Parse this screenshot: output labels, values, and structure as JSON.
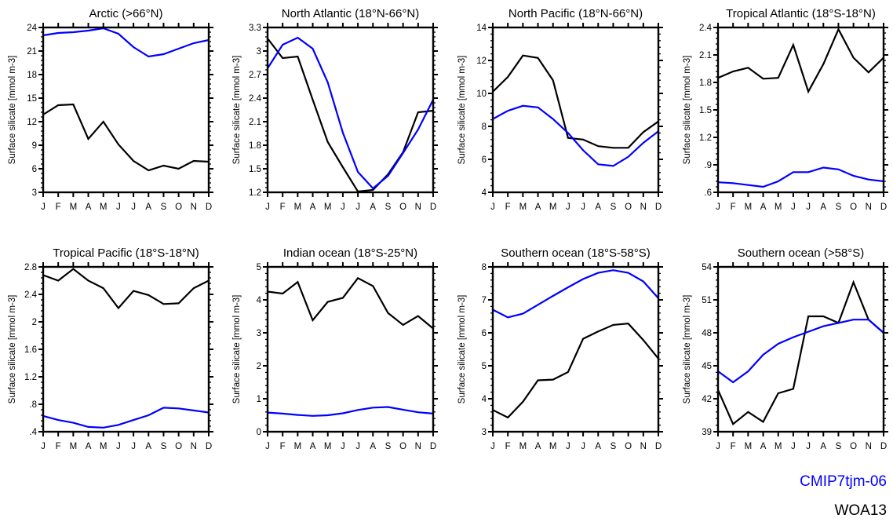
{
  "figure": {
    "ylabel": "Surface silicate [mmol m-3]",
    "months": [
      "J",
      "F",
      "M",
      "A",
      "M",
      "J",
      "J",
      "A",
      "S",
      "O",
      "N",
      "D"
    ]
  },
  "legend": {
    "items": [
      {
        "name": "CMIP7tjm-06",
        "color": "#0000ff"
      },
      {
        "name": "WOA13",
        "color": "#000000"
      }
    ]
  },
  "chart_data": [
    {
      "type": "line",
      "title": "Arctic (>66°N)",
      "xlabel": "",
      "ylabel": "Surface silicate [mmol m-3]",
      "ylim": [
        3,
        24
      ],
      "yticks": [
        3,
        6,
        9,
        12,
        15,
        18,
        21,
        24
      ],
      "ytick_labels": [
        "3",
        "6",
        "9",
        "12",
        "15",
        "18",
        "21",
        "24"
      ],
      "categories": [
        "J",
        "F",
        "M",
        "A",
        "M",
        "J",
        "J",
        "A",
        "S",
        "O",
        "N",
        "D"
      ],
      "series": [
        {
          "name": "CMIP7tjm-06",
          "color": "#0000ff",
          "values": [
            23.0,
            23.3,
            23.4,
            23.6,
            23.9,
            23.2,
            21.5,
            20.3,
            20.6,
            21.3,
            22.0,
            22.4
          ]
        },
        {
          "name": "WOA13",
          "color": "#000000",
          "values": [
            12.9,
            14.1,
            14.2,
            9.8,
            12.0,
            9.1,
            7.0,
            5.8,
            6.4,
            6.0,
            7.0,
            6.9
          ]
        }
      ]
    },
    {
      "type": "line",
      "title": "North Atlantic (18°N-66°N)",
      "xlabel": "",
      "ylabel": "Surface silicate [mmol m-3]",
      "ylim": [
        1.2,
        3.3
      ],
      "yticks": [
        1.2,
        1.5,
        1.8,
        2.1,
        2.4,
        2.7,
        3.0,
        3.3
      ],
      "ytick_labels": [
        "1.2",
        "1.5",
        "1.8",
        "2.1",
        "2.4",
        "2.7",
        "3",
        "3.3"
      ],
      "categories": [
        "J",
        "F",
        "M",
        "A",
        "M",
        "J",
        "J",
        "A",
        "S",
        "O",
        "N",
        "D"
      ],
      "series": [
        {
          "name": "CMIP7tjm-06",
          "color": "#0000ff",
          "values": [
            2.78,
            3.08,
            3.17,
            3.03,
            2.6,
            1.96,
            1.46,
            1.25,
            1.41,
            1.7,
            2.0,
            2.38
          ]
        },
        {
          "name": "WOA13",
          "color": "#000000",
          "values": [
            3.16,
            2.91,
            2.93,
            2.38,
            1.84,
            1.52,
            1.21,
            1.23,
            1.43,
            1.71,
            2.22,
            2.24
          ]
        }
      ]
    },
    {
      "type": "line",
      "title": "North Pacific (18°N-66°N)",
      "xlabel": "",
      "ylabel": "Surface silicate [mmol m-3]",
      "ylim": [
        4,
        14
      ],
      "yticks": [
        4,
        6,
        8,
        10,
        12,
        14
      ],
      "ytick_labels": [
        "4",
        "6",
        "8",
        "10",
        "12",
        "14"
      ],
      "categories": [
        "J",
        "F",
        "M",
        "A",
        "M",
        "J",
        "J",
        "A",
        "S",
        "O",
        "N",
        "D"
      ],
      "series": [
        {
          "name": "CMIP7tjm-06",
          "color": "#0000ff",
          "values": [
            8.45,
            8.95,
            9.25,
            9.15,
            8.45,
            7.6,
            6.55,
            5.7,
            5.6,
            6.15,
            7.0,
            7.7
          ]
        },
        {
          "name": "WOA13",
          "color": "#000000",
          "values": [
            10.1,
            11.0,
            12.3,
            12.15,
            10.8,
            7.3,
            7.2,
            6.8,
            6.7,
            6.7,
            7.65,
            8.3
          ]
        }
      ]
    },
    {
      "type": "line",
      "title": "Tropical Atlantic (18°S-18°N)",
      "xlabel": "",
      "ylabel": "Surface silicate [mmol m-3]",
      "ylim": [
        0.6,
        2.4
      ],
      "yticks": [
        0.6,
        0.9,
        1.2,
        1.5,
        1.8,
        2.1,
        2.4
      ],
      "ytick_labels": [
        ".6",
        ".9",
        "1.2",
        "1.5",
        "1.8",
        "2.1",
        "2.4"
      ],
      "categories": [
        "J",
        "F",
        "M",
        "A",
        "M",
        "J",
        "J",
        "A",
        "S",
        "O",
        "N",
        "D"
      ],
      "series": [
        {
          "name": "CMIP7tjm-06",
          "color": "#0000ff",
          "values": [
            0.71,
            0.7,
            0.68,
            0.66,
            0.72,
            0.82,
            0.82,
            0.87,
            0.85,
            0.78,
            0.74,
            0.72
          ]
        },
        {
          "name": "WOA13",
          "color": "#000000",
          "values": [
            1.85,
            1.92,
            1.96,
            1.84,
            1.85,
            2.21,
            1.7,
            2.0,
            2.38,
            2.07,
            1.91,
            2.07
          ]
        }
      ]
    },
    {
      "type": "line",
      "title": "Tropical Pacific (18°S-18°N)",
      "xlabel": "",
      "ylabel": "Surface silicate [mmol m-3]",
      "ylim": [
        0.4,
        2.8
      ],
      "yticks": [
        0.4,
        0.8,
        1.2,
        1.6,
        2.0,
        2.4,
        2.8
      ],
      "ytick_labels": [
        ".4",
        ".8",
        "1.2",
        "1.6",
        "2",
        "2.4",
        "2.8"
      ],
      "categories": [
        "J",
        "F",
        "M",
        "A",
        "M",
        "J",
        "J",
        "A",
        "S",
        "O",
        "N",
        "D"
      ],
      "series": [
        {
          "name": "CMIP7tjm-06",
          "color": "#0000ff",
          "values": [
            0.63,
            0.57,
            0.53,
            0.47,
            0.46,
            0.5,
            0.57,
            0.64,
            0.75,
            0.74,
            0.71,
            0.68
          ]
        },
        {
          "name": "WOA13",
          "color": "#000000",
          "values": [
            2.68,
            2.6,
            2.77,
            2.6,
            2.49,
            2.2,
            2.45,
            2.39,
            2.26,
            2.27,
            2.49,
            2.6
          ]
        }
      ]
    },
    {
      "type": "line",
      "title": "Indian ocean (18°S-25°N)",
      "xlabel": "",
      "ylabel": "Surface silicate [mmol m-3]",
      "ylim": [
        0,
        5
      ],
      "yticks": [
        0,
        1,
        2,
        3,
        4,
        5
      ],
      "ytick_labels": [
        "0",
        "1",
        "2",
        "3",
        "4",
        "5"
      ],
      "categories": [
        "J",
        "F",
        "M",
        "A",
        "M",
        "J",
        "J",
        "A",
        "S",
        "O",
        "N",
        "D"
      ],
      "series": [
        {
          "name": "CMIP7tjm-06",
          "color": "#0000ff",
          "values": [
            0.58,
            0.55,
            0.51,
            0.48,
            0.5,
            0.56,
            0.66,
            0.73,
            0.75,
            0.67,
            0.59,
            0.55
          ]
        },
        {
          "name": "WOA13",
          "color": "#000000",
          "values": [
            4.25,
            4.19,
            4.54,
            3.38,
            3.94,
            4.06,
            4.66,
            4.42,
            3.6,
            3.24,
            3.51,
            3.13
          ]
        }
      ]
    },
    {
      "type": "line",
      "title": "Southern ocean (18°S-58°S)",
      "xlabel": "",
      "ylabel": "Surface silicate [mmol m-3]",
      "ylim": [
        3,
        8
      ],
      "yticks": [
        3,
        4,
        5,
        6,
        7,
        8
      ],
      "ytick_labels": [
        "3",
        "4",
        "5",
        "6",
        "7",
        "8"
      ],
      "categories": [
        "J",
        "F",
        "M",
        "A",
        "M",
        "J",
        "J",
        "A",
        "S",
        "O",
        "N",
        "D"
      ],
      "series": [
        {
          "name": "CMIP7tjm-06",
          "color": "#0000ff",
          "values": [
            6.7,
            6.47,
            6.58,
            6.85,
            7.12,
            7.38,
            7.63,
            7.82,
            7.9,
            7.82,
            7.56,
            7.05
          ]
        },
        {
          "name": "WOA13",
          "color": "#000000",
          "values": [
            3.66,
            3.43,
            3.91,
            4.56,
            4.58,
            4.81,
            5.82,
            6.04,
            6.24,
            6.28,
            5.78,
            5.22
          ]
        }
      ]
    },
    {
      "type": "line",
      "title": "Southern ocean (>58°S)",
      "xlabel": "",
      "ylabel": "Surface silicate [mmol m-3]",
      "ylim": [
        39,
        54
      ],
      "yticks": [
        39,
        42,
        45,
        48,
        51,
        54
      ],
      "ytick_labels": [
        "39",
        "42",
        "45",
        "48",
        "51",
        "54"
      ],
      "categories": [
        "J",
        "F",
        "M",
        "A",
        "M",
        "J",
        "J",
        "A",
        "S",
        "O",
        "N",
        "D"
      ],
      "series": [
        {
          "name": "CMIP7tjm-06",
          "color": "#0000ff",
          "values": [
            44.5,
            43.5,
            44.5,
            46.0,
            47.0,
            47.6,
            48.1,
            48.6,
            48.9,
            49.2,
            49.2,
            48.0
          ]
        },
        {
          "name": "WOA13",
          "color": "#000000",
          "values": [
            42.8,
            39.7,
            40.8,
            39.9,
            42.5,
            42.9,
            49.5,
            49.5,
            48.9,
            52.6,
            49.2,
            48.0
          ]
        }
      ]
    }
  ]
}
